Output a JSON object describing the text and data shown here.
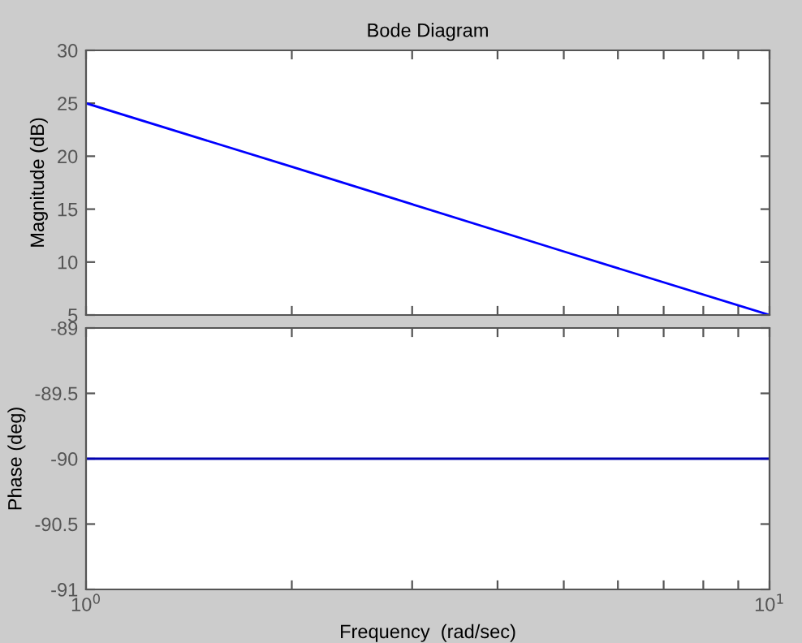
{
  "chart_data": [
    {
      "type": "line",
      "title": "Bode Diagram",
      "ylabel": "Magnitude (dB)",
      "log": "x",
      "x": [
        1,
        2,
        5,
        10
      ],
      "series": [
        {
          "color": "#0000ff",
          "values": [
            25,
            19,
            11,
            5
          ]
        }
      ],
      "xlim": [
        1,
        10
      ],
      "xticks": [
        {
          "value": 1,
          "label": null
        },
        {
          "value": 2,
          "label": null
        },
        {
          "value": 3,
          "label": null
        },
        {
          "value": 4,
          "label": null
        },
        {
          "value": 5,
          "label": null
        },
        {
          "value": 6,
          "label": null
        },
        {
          "value": 7,
          "label": null
        },
        {
          "value": 8,
          "label": null
        },
        {
          "value": 9,
          "label": null
        },
        {
          "value": 10,
          "label": null
        }
      ],
      "ylim": [
        5,
        30
      ],
      "yticks": [
        5,
        10,
        15,
        20,
        25,
        30
      ],
      "tick_labels": "y",
      "grid": false,
      "legend": false
    },
    {
      "type": "line",
      "ylabel": "Phase (deg)",
      "xlabel": "Frequency  (rad/sec)",
      "log": "x",
      "x": [
        1,
        10
      ],
      "series": [
        {
          "color": "#0000b0",
          "values": [
            -90,
            -90
          ]
        }
      ],
      "xlim": [
        1,
        10
      ],
      "xticks": [
        {
          "value": 1,
          "label": "10$^{0}$"
        },
        {
          "value": 2,
          "label": null
        },
        {
          "value": 3,
          "label": null
        },
        {
          "value": 4,
          "label": null
        },
        {
          "value": 5,
          "label": null
        },
        {
          "value": 6,
          "label": null
        },
        {
          "value": 7,
          "label": null
        },
        {
          "value": 8,
          "label": null
        },
        {
          "value": 9,
          "label": null
        },
        {
          "value": 10,
          "label": "10$^{1}$"
        }
      ],
      "ylim": [
        -91,
        -89
      ],
      "yticks": [
        -91,
        -90.5,
        -90,
        -89.5,
        -89
      ],
      "grid": false,
      "legend": false
    }
  ]
}
